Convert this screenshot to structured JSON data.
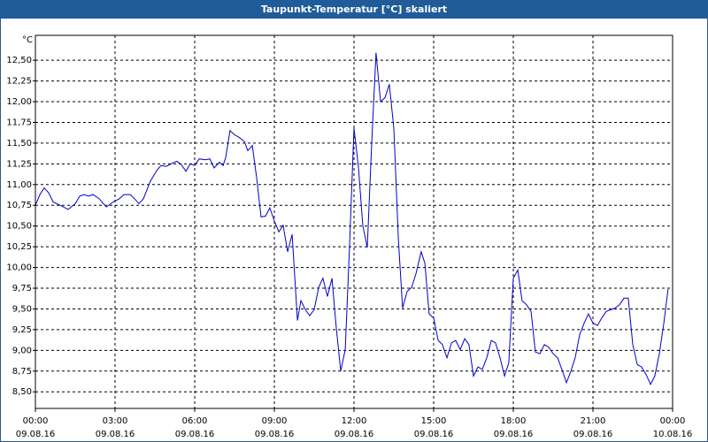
{
  "chart_data": {
    "type": "line",
    "title": "Taupunkt-Temperatur [°C] skaliert",
    "unit": "°C",
    "xlim": [
      0,
      24
    ],
    "ylim": [
      8.3,
      12.8
    ],
    "grid": true,
    "xticks": [
      {
        "value": 0,
        "label": "00:00",
        "date": "09.08.16"
      },
      {
        "value": 3,
        "label": "03:00",
        "date": "09.08.16"
      },
      {
        "value": 6,
        "label": "06:00",
        "date": "09.08.16"
      },
      {
        "value": 9,
        "label": "09:00",
        "date": "09.08.16"
      },
      {
        "value": 12,
        "label": "12:00",
        "date": "09.08.16"
      },
      {
        "value": 15,
        "label": "15:00",
        "date": "09.08.16"
      },
      {
        "value": 18,
        "label": "18:00",
        "date": "09.08.16"
      },
      {
        "value": 21,
        "label": "21:00",
        "date": "09.08.16"
      },
      {
        "value": 24,
        "label": "00:00",
        "date": "10.08.16"
      }
    ],
    "yticks": [
      {
        "value": 8.5,
        "label": "8,50"
      },
      {
        "value": 8.75,
        "label": "8,75"
      },
      {
        "value": 9,
        "label": "9,00"
      },
      {
        "value": 9.25,
        "label": "9,25"
      },
      {
        "value": 9.5,
        "label": "9,50"
      },
      {
        "value": 9.75,
        "label": "9,75"
      },
      {
        "value": 10,
        "label": "10,00"
      },
      {
        "value": 10.25,
        "label": "10,25"
      },
      {
        "value": 10.5,
        "label": "10,50"
      },
      {
        "value": 10.75,
        "label": "10,75"
      },
      {
        "value": 11,
        "label": "11,00"
      },
      {
        "value": 11.25,
        "label": "11,25"
      },
      {
        "value": 11.5,
        "label": "11,50"
      },
      {
        "value": 11.75,
        "label": "11,75"
      },
      {
        "value": 12,
        "label": "12,00"
      },
      {
        "value": 12.25,
        "label": "12,25"
      },
      {
        "value": 12.5,
        "label": "12,50"
      }
    ],
    "x": [
      0,
      0.17,
      0.33,
      0.5,
      0.67,
      1,
      1.23,
      1.5,
      1.67,
      1.83,
      2,
      2.17,
      2.4,
      2.67,
      2.93,
      3.17,
      3.33,
      3.57,
      3.73,
      3.9,
      4.07,
      4.33,
      4.57,
      4.73,
      4.93,
      5.17,
      5.33,
      5.5,
      5.67,
      5.83,
      6,
      6.17,
      6.4,
      6.57,
      6.73,
      6.93,
      7.07,
      7.17,
      7.33,
      7.5,
      7.67,
      7.87,
      8,
      8.17,
      8.33,
      8.5,
      8.67,
      8.83,
      9,
      9.17,
      9.33,
      9.5,
      9.67,
      9.87,
      10,
      10.17,
      10.33,
      10.5,
      10.67,
      10.83,
      11,
      11.17,
      11.33,
      11.5,
      11.67,
      11.83,
      12,
      12.17,
      12.33,
      12.5,
      12.67,
      12.83,
      13,
      13.17,
      13.33,
      13.5,
      13.67,
      13.83,
      14,
      14.17,
      14.33,
      14.53,
      14.67,
      14.83,
      15,
      15.17,
      15.33,
      15.5,
      15.67,
      15.83,
      16,
      16.17,
      16.33,
      16.5,
      16.67,
      16.83,
      17,
      17.17,
      17.33,
      17.5,
      17.67,
      17.83,
      18,
      18.17,
      18.33,
      18.5,
      18.67,
      18.83,
      19,
      19.17,
      19.33,
      19.5,
      19.67,
      19.83,
      20,
      20.17,
      20.33,
      20.5,
      20.67,
      20.83,
      21,
      21.17,
      21.33,
      21.5,
      21.67,
      21.83,
      22,
      22.17,
      22.33,
      22.5,
      22.67,
      22.83,
      23,
      23.17,
      23.33,
      23.5,
      23.67,
      23.83
    ],
    "series": [
      {
        "color": "#0000cc",
        "values": [
          10.75,
          10.88,
          10.96,
          10.9,
          10.79,
          10.74,
          10.7,
          10.77,
          10.86,
          10.88,
          10.86,
          10.88,
          10.83,
          10.73,
          10.79,
          10.83,
          10.88,
          10.88,
          10.83,
          10.77,
          10.83,
          11.04,
          11.17,
          11.23,
          11.22,
          11.26,
          11.28,
          11.24,
          11.16,
          11.25,
          11.23,
          11.31,
          11.3,
          11.31,
          11.2,
          11.27,
          11.23,
          11.33,
          11.65,
          11.6,
          11.57,
          11.52,
          11.41,
          11.47,
          11.09,
          10.61,
          10.62,
          10.72,
          10.56,
          10.43,
          10.51,
          10.19,
          10.4,
          9.36,
          9.6,
          9.49,
          9.42,
          9.49,
          9.76,
          9.87,
          9.65,
          9.87,
          9.28,
          8.75,
          9.01,
          10.24,
          11.68,
          11.2,
          10.51,
          10.24,
          11.52,
          12.59,
          12.0,
          12.05,
          12.21,
          11.68,
          10.35,
          9.51,
          9.71,
          9.76,
          9.92,
          10.19,
          10.05,
          9.44,
          9.39,
          9.12,
          9.07,
          8.91,
          9.09,
          9.12,
          9.01,
          9.14,
          9.07,
          8.69,
          8.8,
          8.77,
          8.91,
          9.12,
          9.09,
          8.91,
          8.69,
          8.85,
          9.87,
          9.97,
          9.6,
          9.55,
          9.47,
          8.98,
          8.96,
          9.07,
          9.04,
          8.96,
          8.91,
          8.77,
          8.61,
          8.75,
          8.91,
          9.19,
          9.33,
          9.44,
          9.33,
          9.3,
          9.39,
          9.47,
          9.49,
          9.51,
          9.55,
          9.63,
          9.63,
          9.07,
          8.83,
          8.8,
          8.71,
          8.59,
          8.69,
          8.96,
          9.33,
          9.74
        ]
      }
    ]
  }
}
